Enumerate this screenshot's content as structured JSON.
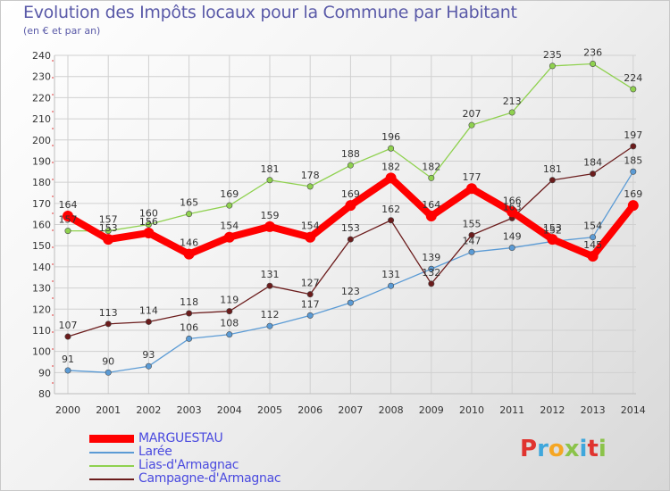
{
  "title": "Evolution des Impôts locaux pour la Commune par Habitant",
  "subtitle": "(en € et par an)",
  "logo": {
    "text": "Proxiti",
    "letters": [
      {
        "ch": "P",
        "color": "#e0342f"
      },
      {
        "ch": "r",
        "color": "#3fa7dc"
      },
      {
        "ch": "o",
        "color": "#f5a623"
      },
      {
        "ch": "x",
        "color": "#8bc34a"
      },
      {
        "ch": "i",
        "color": "#3fa7dc"
      },
      {
        "ch": "t",
        "color": "#e0342f"
      },
      {
        "ch": "i",
        "color": "#8bc34a"
      }
    ]
  },
  "chart_data": {
    "type": "line",
    "title": "Evolution des Impôts locaux pour la Commune par Habitant",
    "subtitle": "(en € et par an)",
    "x": [
      "2000",
      "2001",
      "2002",
      "2003",
      "2004",
      "2005",
      "2006",
      "2007",
      "2008",
      "2009",
      "2010",
      "2011",
      "2012",
      "2013",
      "2014"
    ],
    "ylim": [
      80,
      240
    ],
    "yticks": [
      80,
      90,
      100,
      110,
      120,
      130,
      140,
      150,
      160,
      170,
      180,
      190,
      200,
      210,
      220,
      230,
      240
    ],
    "grid": true,
    "legend_position": "bottom-left",
    "series": [
      {
        "name": "MARGUESTAU",
        "color": "#ff0000",
        "thick": true,
        "values": [
          164,
          153,
          156,
          146,
          154,
          159,
          154,
          169,
          182,
          164,
          177,
          166,
          153,
          145,
          169
        ],
        "labels": [
          "164",
          "153",
          "156",
          "146",
          "154",
          "159",
          "154",
          "169",
          "182",
          "164",
          "177",
          "166",
          "153",
          "145",
          "169"
        ]
      },
      {
        "name": "Larée",
        "color": "#5b9bd5",
        "thick": false,
        "values": [
          91,
          90,
          93,
          106,
          108,
          112,
          117,
          123,
          131,
          139,
          147,
          149,
          152,
          154,
          185
        ],
        "labels": [
          "91",
          "90",
          "93",
          "106",
          "108",
          "112",
          "117",
          "123",
          "131",
          "139",
          "147",
          "149",
          "152",
          "154",
          "185"
        ]
      },
      {
        "name": "Lias-d'Armagnac",
        "color": "#8fd14f",
        "thick": false,
        "values": [
          157,
          157,
          160,
          165,
          169,
          181,
          178,
          188,
          196,
          182,
          207,
          213,
          235,
          236,
          224
        ],
        "labels": [
          "157",
          "157",
          "160",
          "165",
          "169",
          "181",
          "178",
          "188",
          "196",
          "182",
          "207",
          "213",
          "235",
          "236",
          "224"
        ]
      },
      {
        "name": "Campagne-d'Armagnac",
        "color": "#6b1c1c",
        "thick": false,
        "values": [
          107,
          113,
          114,
          118,
          119,
          131,
          127,
          153,
          162,
          132,
          155,
          163,
          181,
          184,
          197
        ],
        "labels": [
          "107",
          "113",
          "114",
          "118",
          "119",
          "131",
          "127",
          "153",
          "162",
          "132",
          "155",
          "163",
          "181",
          "184",
          "197"
        ]
      }
    ]
  }
}
